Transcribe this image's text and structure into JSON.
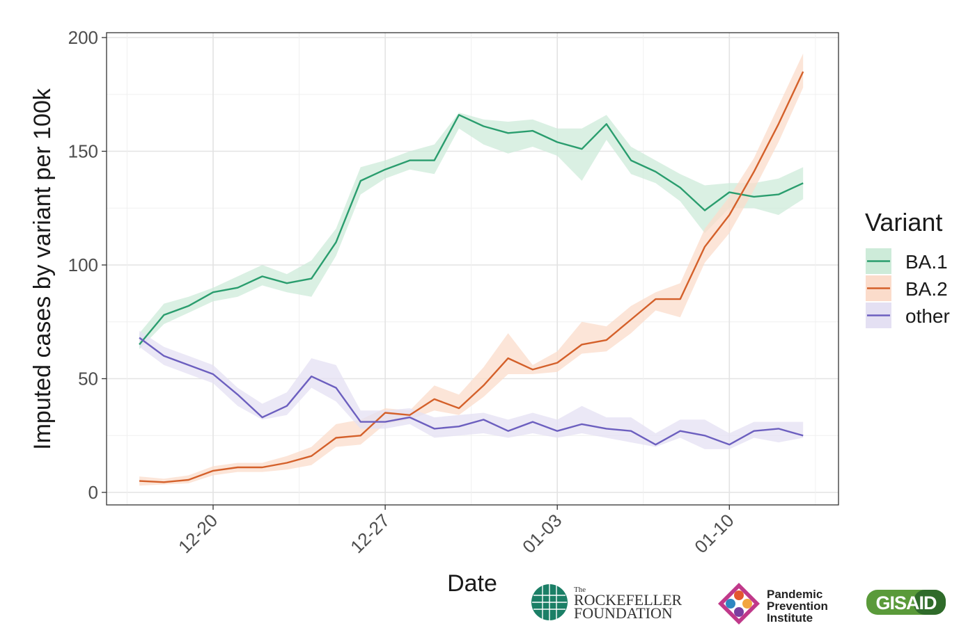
{
  "chart_data": {
    "type": "line",
    "title": "",
    "xlabel": "Date",
    "ylabel": "Imputed cases by variant per 100k",
    "ylim": [
      0,
      200
    ],
    "yticks": [
      0,
      50,
      100,
      150,
      200
    ],
    "x_day_range": [
      -4.2,
      24.4
    ],
    "xticks": [
      {
        "day": 0,
        "label": "12-20"
      },
      {
        "day": 7,
        "label": "12-27"
      },
      {
        "day": 14,
        "label": "01-03"
      },
      {
        "day": 21,
        "label": "01-10"
      }
    ],
    "x_days": [
      -3,
      -2,
      -1,
      0,
      1,
      2,
      3,
      4,
      5,
      6,
      7,
      8,
      9,
      10,
      11,
      12,
      13,
      14,
      15,
      16,
      17,
      18,
      19,
      20,
      21,
      22,
      23,
      24
    ],
    "grid": true,
    "legend": {
      "title": "Variant",
      "position": "right"
    },
    "series": [
      {
        "name": "BA.1",
        "color": "#2a9d6e",
        "band_color": "#cdebd9",
        "values": [
          65,
          78,
          82,
          88,
          90,
          95,
          92,
          94,
          110,
          137,
          142,
          146,
          146,
          166,
          161,
          158,
          159,
          154,
          151,
          162,
          146,
          141,
          134,
          124,
          132,
          130,
          131,
          136
        ],
        "lower": [
          63,
          74,
          79,
          84,
          86,
          91,
          88,
          86,
          104,
          131,
          138,
          142,
          140,
          160,
          153,
          149,
          152,
          148,
          137,
          155,
          140,
          136,
          128,
          114,
          125,
          125,
          122,
          129
        ],
        "upper": [
          70,
          83,
          86,
          90,
          95,
          100,
          96,
          102,
          116,
          143,
          146,
          150,
          153,
          167,
          164,
          163,
          164,
          160,
          160,
          166,
          152,
          146,
          140,
          135,
          136,
          136,
          138,
          143
        ]
      },
      {
        "name": "BA.2",
        "color": "#d4602a",
        "band_color": "#fbdccb",
        "values": [
          5,
          4.5,
          5.5,
          9.5,
          11,
          11,
          13,
          16,
          24,
          25,
          35,
          34,
          41,
          37,
          47,
          59,
          54,
          57,
          65,
          67,
          76,
          85,
          85,
          108,
          122,
          141,
          162,
          185
        ],
        "lower": [
          3,
          3.5,
          4,
          7.5,
          9,
          9,
          10,
          12,
          20,
          21,
          30,
          32,
          36,
          34,
          42,
          52,
          52,
          53,
          61,
          62,
          70,
          80,
          77,
          101,
          114,
          133,
          154,
          178
        ],
        "upper": [
          7,
          6,
          7.5,
          11.5,
          13,
          13,
          16,
          20,
          30,
          32,
          37,
          36,
          47,
          43,
          55,
          70,
          56,
          62,
          75,
          73,
          82,
          88,
          92,
          116,
          130,
          147,
          170,
          193
        ]
      },
      {
        "name": "other",
        "color": "#6c5fbf",
        "band_color": "#e4e0f3",
        "values": [
          68,
          60,
          56,
          52,
          43,
          33,
          38,
          51,
          46,
          31,
          31,
          33,
          28,
          29,
          32,
          27,
          31,
          27,
          30,
          28,
          27,
          21,
          27,
          25,
          21,
          27,
          28,
          25
        ],
        "lower": [
          64,
          56,
          52,
          48,
          38,
          32,
          34,
          46,
          40,
          28,
          28,
          30,
          24,
          25,
          26,
          24,
          26,
          24,
          26,
          24,
          22,
          20,
          24,
          19,
          19,
          24,
          22,
          24
        ],
        "upper": [
          71,
          64,
          60,
          56,
          46,
          39,
          44,
          59,
          56,
          36,
          36,
          37,
          33,
          34,
          35,
          32,
          35,
          32,
          38,
          33,
          33,
          26,
          32,
          32,
          26,
          31,
          31,
          31
        ]
      }
    ]
  },
  "logos": {
    "rockefeller": {
      "small": "The",
      "line1": "ROCKEFELLER",
      "line2": "FOUNDATION"
    },
    "ppi": {
      "line1": "Pandemic",
      "line2": "Prevention",
      "line3": "Institute"
    },
    "gisaid": {
      "text": "GISAID"
    }
  }
}
